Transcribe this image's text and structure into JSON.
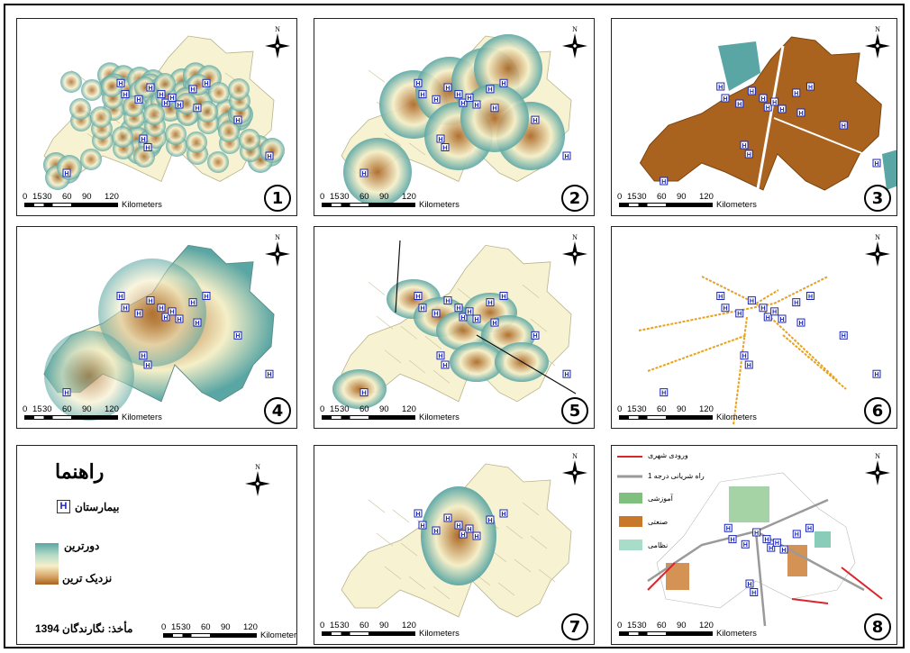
{
  "scale_bar": {
    "ticks": [
      "0",
      "15",
      "30",
      "60",
      "90",
      "120"
    ],
    "unit": "Kilometers"
  },
  "north_label": "N",
  "panels": [
    {
      "number": "1"
    },
    {
      "number": "2"
    },
    {
      "number": "3"
    },
    {
      "number": "4"
    },
    {
      "number": "5"
    },
    {
      "number": "6"
    },
    {
      "number": "7"
    },
    {
      "number": "8"
    }
  ],
  "legend": {
    "title": "راهنما",
    "hospital_label": "بیمارستان",
    "hospital_symbol": "H",
    "far_label": "دورترین",
    "near_label": "نزدیک ترین",
    "source": "مأخذ: نگارندگان 1394"
  },
  "panel8_legend": {
    "urban_entrance": "ورودی شهری",
    "arterial_road": "راه شریانی درجه 1",
    "educational": "آموزشی",
    "industrial": "صنعتی",
    "military": "نظامی"
  },
  "colors": {
    "far": "#5aa6a4",
    "mid": "#f5efc8",
    "near": "#a9631f",
    "parcel": "#f7f3d2",
    "hospital": "#1c27b5",
    "road_orange": "#e8a21c",
    "entrance_red": "#d8262c",
    "road_gray": "#9a9a9a",
    "edu_green": "#7fc07f",
    "ind_orange": "#c9772a",
    "mil_teal": "#6cc0a8"
  }
}
